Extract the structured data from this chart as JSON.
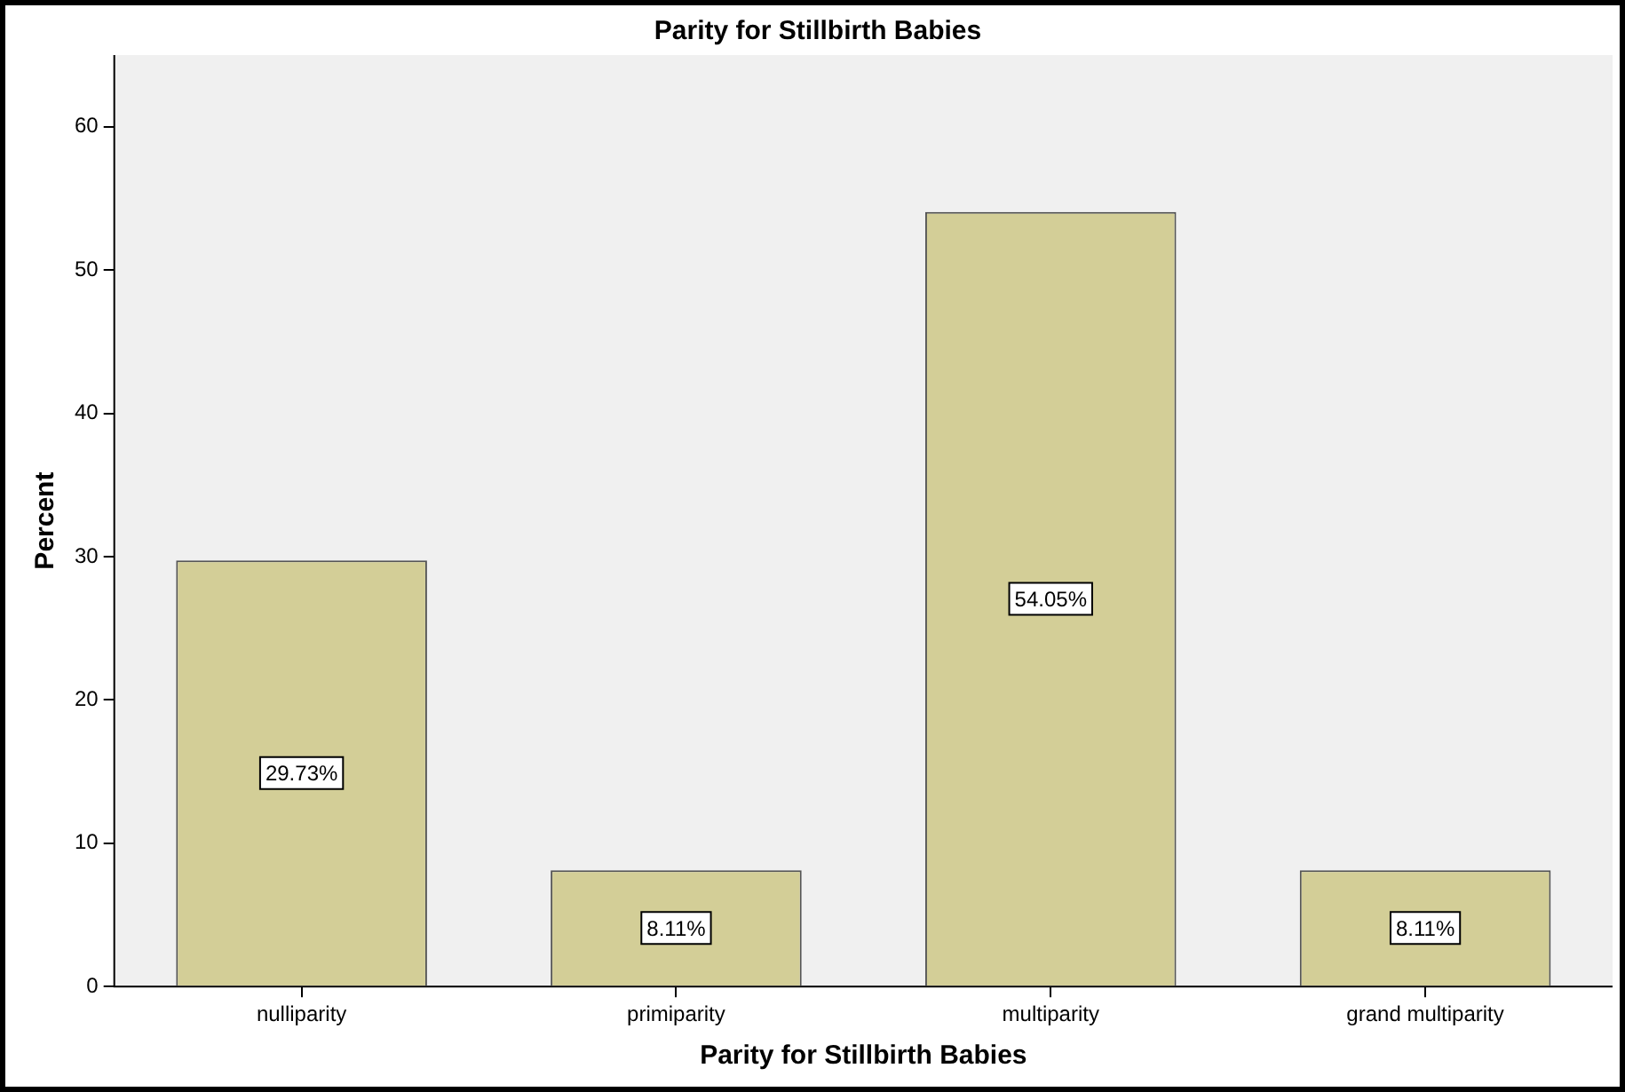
{
  "chart_data": {
    "type": "bar",
    "title": "Parity for Stillbirth Babies",
    "xlabel": "Parity for Stillbirth Babies",
    "ylabel": "Percent",
    "categories": [
      "nulliparity",
      "primiparity",
      "multiparity",
      "grand multiparity"
    ],
    "values": [
      29.73,
      8.11,
      54.05,
      8.11
    ],
    "value_labels": [
      "29.73%",
      "8.11%",
      "54.05%",
      "8.11%"
    ],
    "color": "#d3ce97",
    "ylim": [
      0,
      65
    ],
    "yticks": [
      0,
      10,
      20,
      30,
      40,
      50,
      60
    ]
  }
}
